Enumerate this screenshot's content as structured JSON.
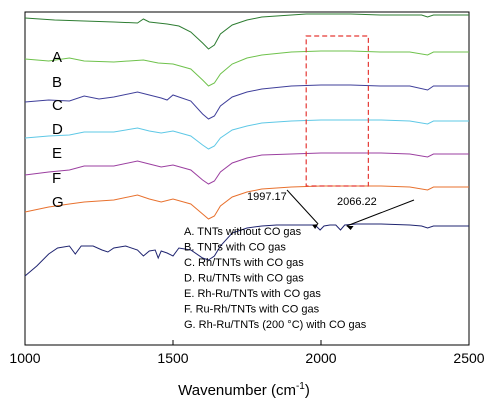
{
  "chart_data": {
    "type": "line",
    "xlabel": "Wavenumber (cm",
    "xlabel_sup": "-1",
    "xlabel_tail": ")",
    "xlim": [
      1000,
      2500
    ],
    "x_ticks": [
      "1000",
      "1500",
      "2000",
      "2500"
    ],
    "grid": false,
    "y_ticks_shown": false,
    "series": [
      {
        "name": "A",
        "color": "#2e7d32",
        "points": [
          [
            1000,
            -30
          ],
          [
            1100,
            -28
          ],
          [
            1200,
            -27
          ],
          [
            1300,
            -26
          ],
          [
            1380,
            -25
          ],
          [
            1400,
            -29
          ],
          [
            1420,
            -26
          ],
          [
            1480,
            -24
          ],
          [
            1520,
            -22
          ],
          [
            1560,
            -16
          ],
          [
            1600,
            -5
          ],
          [
            1620,
            1
          ],
          [
            1640,
            -3
          ],
          [
            1660,
            -14
          ],
          [
            1700,
            -23
          ],
          [
            1750,
            -28
          ],
          [
            1800,
            -31
          ],
          [
            1900,
            -33
          ],
          [
            1950,
            -34
          ],
          [
            2000,
            -34
          ],
          [
            2050,
            -34
          ],
          [
            2100,
            -34
          ],
          [
            2200,
            -33
          ],
          [
            2300,
            -33
          ],
          [
            2340,
            -33
          ],
          [
            2360,
            -31
          ],
          [
            2380,
            -33
          ],
          [
            2400,
            -33
          ],
          [
            2500,
            -33
          ]
        ]
      },
      {
        "name": "B",
        "color": "#6fc24c",
        "points": [
          [
            1000,
            -13
          ],
          [
            1080,
            -11
          ],
          [
            1150,
            -14
          ],
          [
            1200,
            -11
          ],
          [
            1300,
            -10
          ],
          [
            1400,
            -12
          ],
          [
            1450,
            -9
          ],
          [
            1500,
            -8
          ],
          [
            1560,
            -3
          ],
          [
            1600,
            8
          ],
          [
            1620,
            14
          ],
          [
            1640,
            11
          ],
          [
            1660,
            2
          ],
          [
            1700,
            -8
          ],
          [
            1750,
            -14
          ],
          [
            1800,
            -17
          ],
          [
            1900,
            -20
          ],
          [
            2000,
            -21
          ],
          [
            2100,
            -21
          ],
          [
            2200,
            -20
          ],
          [
            2300,
            -20
          ],
          [
            2360,
            -17
          ],
          [
            2380,
            -20
          ],
          [
            2400,
            -20
          ],
          [
            2500,
            -20
          ]
        ]
      },
      {
        "name": "C",
        "color": "#3f3f9a",
        "points": [
          [
            1000,
            6
          ],
          [
            1080,
            4
          ],
          [
            1150,
            5
          ],
          [
            1200,
            0
          ],
          [
            1250,
            3
          ],
          [
            1300,
            1
          ],
          [
            1380,
            -4
          ],
          [
            1420,
            -1
          ],
          [
            1460,
            2
          ],
          [
            1480,
            4
          ],
          [
            1500,
            -1
          ],
          [
            1560,
            5
          ],
          [
            1600,
            18
          ],
          [
            1620,
            23
          ],
          [
            1640,
            20
          ],
          [
            1660,
            10
          ],
          [
            1700,
            1
          ],
          [
            1750,
            -4
          ],
          [
            1800,
            -7
          ],
          [
            1900,
            -10
          ],
          [
            2000,
            -11
          ],
          [
            2100,
            -11
          ],
          [
            2200,
            -10
          ],
          [
            2300,
            -10
          ],
          [
            2360,
            -6
          ],
          [
            2380,
            -10
          ],
          [
            2400,
            -10
          ],
          [
            2500,
            -10
          ]
        ]
      },
      {
        "name": "D",
        "color": "#5ec8e6",
        "points": [
          [
            1000,
            20
          ],
          [
            1080,
            18
          ],
          [
            1150,
            17
          ],
          [
            1200,
            14
          ],
          [
            1300,
            14
          ],
          [
            1380,
            10
          ],
          [
            1420,
            13
          ],
          [
            1460,
            15
          ],
          [
            1500,
            13
          ],
          [
            1560,
            18
          ],
          [
            1600,
            27
          ],
          [
            1620,
            31
          ],
          [
            1640,
            28
          ],
          [
            1660,
            20
          ],
          [
            1700,
            12
          ],
          [
            1750,
            8
          ],
          [
            1800,
            5
          ],
          [
            1900,
            3
          ],
          [
            2000,
            2
          ],
          [
            2100,
            2
          ],
          [
            2200,
            2
          ],
          [
            2300,
            3
          ],
          [
            2360,
            6
          ],
          [
            2380,
            3
          ],
          [
            2400,
            3
          ],
          [
            2500,
            3
          ]
        ]
      },
      {
        "name": "E",
        "color": "#9b3fa0",
        "points": [
          [
            1000,
            35
          ],
          [
            1080,
            32
          ],
          [
            1150,
            30
          ],
          [
            1200,
            26
          ],
          [
            1300,
            26
          ],
          [
            1380,
            21
          ],
          [
            1420,
            24
          ],
          [
            1460,
            27
          ],
          [
            1500,
            25
          ],
          [
            1560,
            30
          ],
          [
            1600,
            40
          ],
          [
            1620,
            44
          ],
          [
            1640,
            41
          ],
          [
            1660,
            32
          ],
          [
            1700,
            23
          ],
          [
            1750,
            18
          ],
          [
            1800,
            15
          ],
          [
            1900,
            14
          ],
          [
            2000,
            13
          ],
          [
            2100,
            13
          ],
          [
            2200,
            13
          ],
          [
            2300,
            14
          ],
          [
            2360,
            17
          ],
          [
            2380,
            14
          ],
          [
            2400,
            14
          ],
          [
            2500,
            14
          ]
        ]
      },
      {
        "name": "F",
        "color": "#e8712e",
        "points": [
          [
            1000,
            50
          ],
          [
            1080,
            45
          ],
          [
            1150,
            42
          ],
          [
            1200,
            40
          ],
          [
            1300,
            38
          ],
          [
            1380,
            33
          ],
          [
            1420,
            37
          ],
          [
            1460,
            40
          ],
          [
            1500,
            37
          ],
          [
            1560,
            42
          ],
          [
            1600,
            52
          ],
          [
            1620,
            57
          ],
          [
            1640,
            54
          ],
          [
            1660,
            44
          ],
          [
            1700,
            35
          ],
          [
            1750,
            30
          ],
          [
            1800,
            27
          ],
          [
            1900,
            25
          ],
          [
            2000,
            24
          ],
          [
            2100,
            24
          ],
          [
            2200,
            24
          ],
          [
            2300,
            25
          ],
          [
            2360,
            28
          ],
          [
            2380,
            25
          ],
          [
            2400,
            25
          ],
          [
            2500,
            25
          ]
        ]
      },
      {
        "name": "G",
        "color": "#1f2470",
        "points": [
          [
            1000,
            88
          ],
          [
            1040,
            78
          ],
          [
            1080,
            66
          ],
          [
            1110,
            60
          ],
          [
            1150,
            58
          ],
          [
            1170,
            66
          ],
          [
            1190,
            58
          ],
          [
            1230,
            58
          ],
          [
            1260,
            62
          ],
          [
            1280,
            64
          ],
          [
            1300,
            60
          ],
          [
            1340,
            58
          ],
          [
            1380,
            62
          ],
          [
            1400,
            68
          ],
          [
            1420,
            63
          ],
          [
            1440,
            62
          ],
          [
            1450,
            70
          ],
          [
            1460,
            63
          ],
          [
            1480,
            65
          ],
          [
            1500,
            68
          ],
          [
            1520,
            60
          ],
          [
            1560,
            62
          ],
          [
            1600,
            70
          ],
          [
            1620,
            72
          ],
          [
            1640,
            68
          ],
          [
            1660,
            58
          ],
          [
            1700,
            45
          ],
          [
            1750,
            40
          ],
          [
            1800,
            38
          ],
          [
            1850,
            37
          ],
          [
            1900,
            37
          ],
          [
            1950,
            37
          ],
          [
            1980,
            37
          ],
          [
            1997,
            42
          ],
          [
            2010,
            38
          ],
          [
            2030,
            37
          ],
          [
            2050,
            37
          ],
          [
            2066,
            42
          ],
          [
            2080,
            37
          ],
          [
            2120,
            36
          ],
          [
            2200,
            36
          ],
          [
            2300,
            37
          ],
          [
            2340,
            38
          ],
          [
            2360,
            40
          ],
          [
            2380,
            38
          ],
          [
            2500,
            38
          ]
        ]
      }
    ],
    "series_letters": [
      "A",
      "B",
      "C",
      "D",
      "E",
      "F",
      "G"
    ],
    "legend": [
      "A. TNTs without CO gas",
      "B. TNTs with CO gas",
      "C. Rh/TNTs with CO gas",
      "D. Ru/TNTs with CO gas",
      "E. Rh-Ru/TNTs with CO gas",
      "F. Ru-Rh/TNTs with CO gas",
      "G. Rh-Ru/TNTs (200 °C) with CO gas"
    ],
    "legend_placement": "bottom-right",
    "highlight_region": {
      "x": [
        1950,
        2160
      ],
      "color": "#e53935",
      "style": "dashed"
    },
    "annotations": [
      {
        "text": "1997.17",
        "x": 1997.17
      },
      {
        "text": "2066.22",
        "x": 2066.22
      }
    ]
  }
}
